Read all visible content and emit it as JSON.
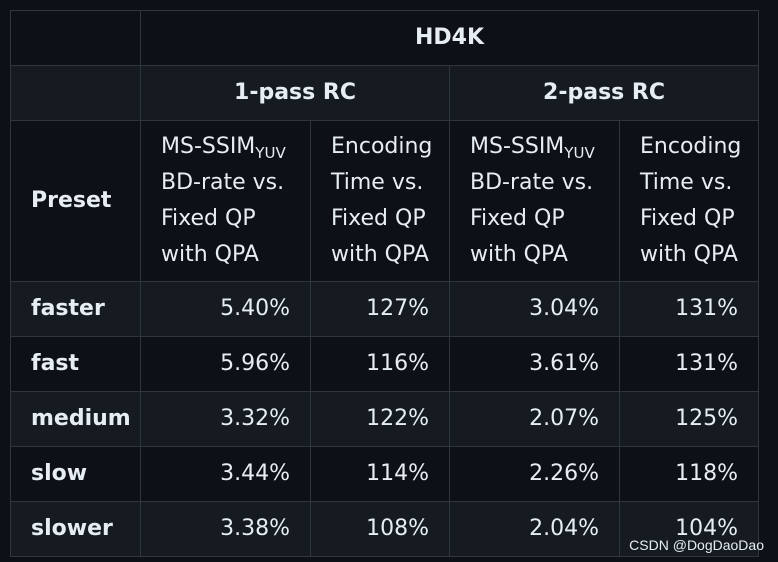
{
  "table": {
    "group_header": "HD4K",
    "pass_headers": [
      "1-pass RC",
      "2-pass RC"
    ],
    "preset_header": "Preset",
    "col_ssim": {
      "line1_prefix": "MS-SSIM",
      "line1_sub": "YUV",
      "line2": "BD-rate vs.",
      "line3": "Fixed QP",
      "line4": "with QPA"
    },
    "col_time": {
      "line1": "Encoding",
      "line2": "Time vs.",
      "line3": "Fixed QP",
      "line4": "with QPA"
    },
    "rows": [
      {
        "preset": "faster",
        "p1_bd": "5.40%",
        "p1_time": "127%",
        "p2_bd": "3.04%",
        "p2_time": "131%"
      },
      {
        "preset": "fast",
        "p1_bd": "5.96%",
        "p1_time": "116%",
        "p2_bd": "3.61%",
        "p2_time": "131%"
      },
      {
        "preset": "medium",
        "p1_bd": "3.32%",
        "p1_time": "122%",
        "p2_bd": "2.07%",
        "p2_time": "125%"
      },
      {
        "preset": "slow",
        "p1_bd": "3.44%",
        "p1_time": "114%",
        "p2_bd": "2.26%",
        "p2_time": "118%"
      },
      {
        "preset": "slower",
        "p1_bd": "3.38%",
        "p1_time": "108%",
        "p2_bd": "2.04%",
        "p2_time": "104%"
      }
    ]
  },
  "watermark": "CSDN @DogDaoDao",
  "colors": {
    "background": "#0d1117",
    "row_alt": "#161b22",
    "border": "#30363d",
    "text": "#e6edf3"
  }
}
